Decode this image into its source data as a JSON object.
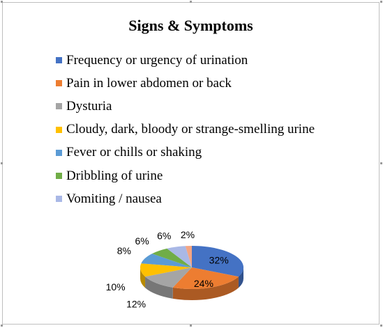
{
  "chart_data": {
    "type": "pie",
    "title": "Signs & Symptoms",
    "legend_position": "top",
    "slices": [
      {
        "label": "Frequency or urgency of urination",
        "value": 32,
        "display": "32%",
        "color": "#4472c4"
      },
      {
        "label": "Pain in lower abdomen or back",
        "value": 24,
        "display": "24%",
        "color": "#ed7d31"
      },
      {
        "label": "Dysturia",
        "value": 12,
        "display": "12%",
        "color": "#a5a5a5"
      },
      {
        "label": "Cloudy, dark, bloody or strange-smelling urine",
        "value": 10,
        "display": "10%",
        "color": "#ffc000"
      },
      {
        "label": "Fever or chills or shaking",
        "value": 8,
        "display": "8%",
        "color": "#5b9bd5"
      },
      {
        "label": "Dribbling of urine",
        "value": 6,
        "display": "6%",
        "color": "#70ad47"
      },
      {
        "label": "Vomiting / nausea",
        "value": 6,
        "display": "6%",
        "color": "#a9b8e6"
      },
      {
        "label": "",
        "value": 2,
        "display": "2%",
        "color": "#f4a582"
      }
    ]
  }
}
